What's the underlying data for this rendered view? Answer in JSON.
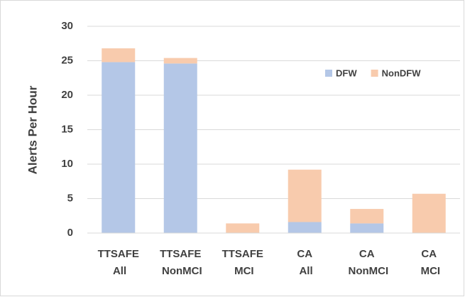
{
  "chart_data": {
    "type": "stacked_bar",
    "y_label": "Alerts Per Hour",
    "categories": [
      "TTSAFE All",
      "TTSAFE NonMCI",
      "TTSAFE MCI",
      "CA All",
      "CA NonMCI",
      "CA MCI"
    ],
    "series": [
      {
        "name": "DFW",
        "color": "#b4c7e7",
        "values": [
          24.8,
          24.6,
          0,
          1.6,
          1.4,
          0
        ]
      },
      {
        "name": "NonDFW",
        "color": "#f8cbad",
        "values": [
          2.0,
          0.8,
          1.4,
          7.6,
          2.1,
          5.7
        ]
      }
    ],
    "ylim": [
      0,
      30
    ],
    "yticks": [
      0,
      5,
      10,
      15,
      20,
      25,
      30
    ],
    "grid": true
  }
}
